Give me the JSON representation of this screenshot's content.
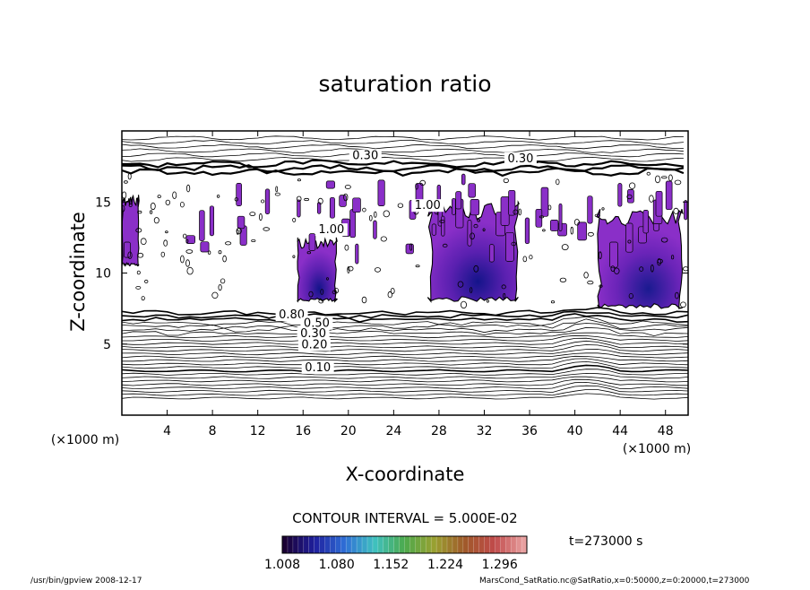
{
  "chart_data": {
    "type": "heatmap",
    "title": "saturation ratio",
    "xlabel": "X-coordinate",
    "ylabel": "Z-coordinate",
    "x_unit": "(×1000 m)",
    "z_unit": "(×1000 m)",
    "xlim": [
      0,
      50
    ],
    "ylim": [
      0,
      20
    ],
    "x_ticks": [
      4,
      8,
      12,
      16,
      20,
      24,
      28,
      32,
      36,
      40,
      44,
      48
    ],
    "y_ticks": [
      5,
      10,
      15
    ],
    "contour_interval_text": "CONTOUR INTERVAL = 5.000E-02",
    "time_label": "t=273000 s",
    "colorbar": {
      "min": 1.008,
      "max": 1.332,
      "tick_labels": [
        "1.008",
        "1.080",
        "1.152",
        "1.224",
        "1.296"
      ],
      "colors": [
        "#1a0033",
        "#1f1f9e",
        "#2f6fd6",
        "#3fc0c0",
        "#4caa4c",
        "#9aa030",
        "#a05a2a",
        "#c04a4a",
        "#e8a0a0"
      ]
    },
    "contour_labels": [
      {
        "text": "0.30",
        "x": 21.5,
        "z": 18.0
      },
      {
        "text": "0.30",
        "x": 35.2,
        "z": 17.8
      },
      {
        "text": "1.00",
        "x": 18.5,
        "z": 12.8
      },
      {
        "text": "1.00",
        "x": 27.0,
        "z": 14.5
      },
      {
        "text": "0.80",
        "x": 15.0,
        "z": 6.8
      },
      {
        "text": "0.50",
        "x": 17.2,
        "z": 6.2
      },
      {
        "text": "0.30",
        "x": 16.9,
        "z": 5.5
      },
      {
        "text": "0.20",
        "x": 17.0,
        "z": 4.7
      },
      {
        "text": "0.10",
        "x": 17.3,
        "z": 3.1
      }
    ],
    "supersaturated_regions": [
      {
        "x": [
          15.5,
          19.0
        ],
        "z": [
          8.0,
          12.5
        ]
      },
      {
        "x": [
          27.0,
          35.0
        ],
        "z": [
          8.0,
          15.0
        ]
      },
      {
        "x": [
          42.0,
          49.5
        ],
        "z": [
          7.5,
          14.5
        ]
      },
      {
        "x": [
          0.0,
          1.5
        ],
        "z": [
          10.5,
          15.5
        ]
      }
    ]
  },
  "footer": {
    "left": "/usr/bin/gpview  2008-12-17",
    "right": "MarsCond_SatRatio.nc@SatRatio,x=0:50000,z=0:20000,t=273000"
  }
}
